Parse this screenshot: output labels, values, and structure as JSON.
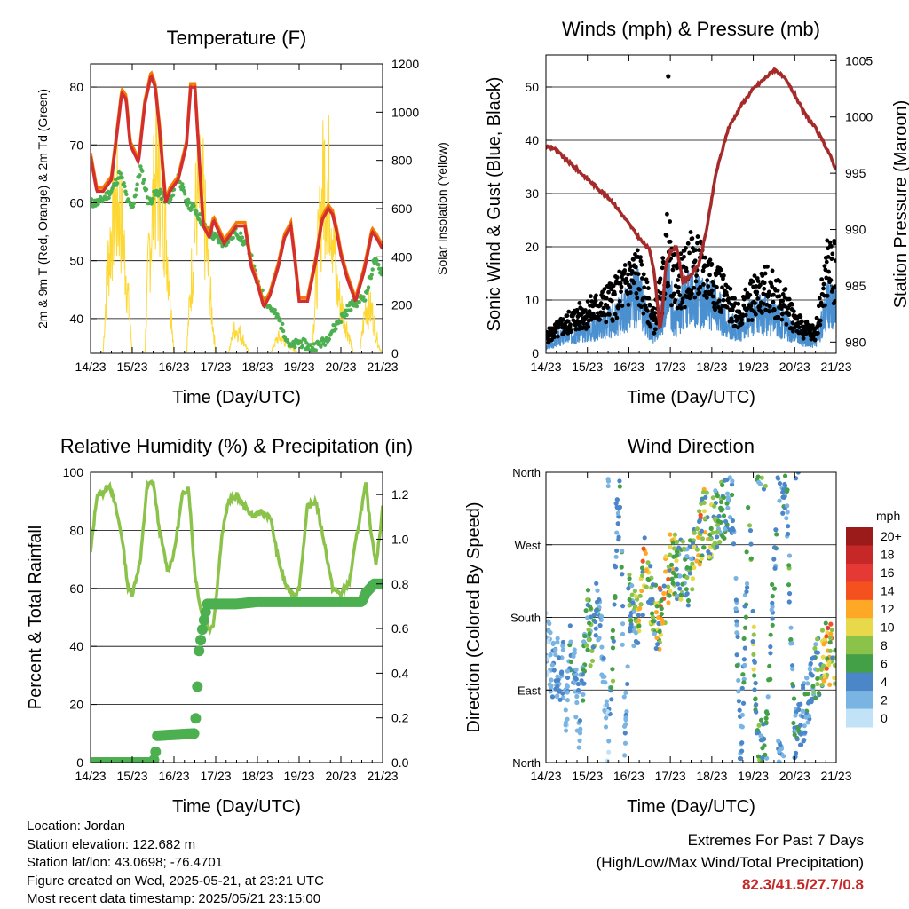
{
  "panels": {
    "temperature": {
      "title": "Temperature (F)",
      "ylabel_left": "2m & 9m T (Red, Orange) & 2m Td (Green)",
      "ylabel_right": "Solar Insolation (Yellow)",
      "xlabel": "Time (Day/UTC)"
    },
    "winds": {
      "title": "Winds (mph) & Pressure (mb)",
      "ylabel_left": "Sonic Wind & Gust (Blue, Black)",
      "ylabel_right": "Station Pressure (Maroon)",
      "xlabel": "Time (Day/UTC)"
    },
    "humidity": {
      "title": "Relative Humidity (%) & Precipitation (in)",
      "ylabel_left": "Percent & Total Rainfall",
      "xlabel": "Time (Day/UTC)"
    },
    "direction": {
      "title": "Wind Direction",
      "ylabel_left": "Direction (Colored By Speed)",
      "xlabel": "Time (Day/UTC)",
      "colorbar_title": "mph"
    }
  },
  "info": {
    "location": "Location: Jordan",
    "elevation": "Station elevation: 122.682 m",
    "latlon": "Station lat/lon: 43.0698; -76.4701",
    "created": "Figure created on Wed, 2025-05-21, at 23:21 UTC",
    "recent": "Most recent data timestamp: 2025/05/21 23:15:00"
  },
  "extremes": {
    "title": "Extremes For Past 7 Days",
    "subtitle": "(High/Low/Max Wind/Total Precipitation)",
    "values": "82.3/41.5/27.7/0.8"
  },
  "colors": {
    "temp_2m": "#d32f2f",
    "temp_9m": "#f57c00",
    "dewpoint": "#4caf50",
    "solar": "#fdd835",
    "wind": "#4a90d0",
    "gust": "#000000",
    "pressure": "#a52a2a",
    "rh": "#8bc34a",
    "precip": "#4caf50"
  },
  "chart_data": [
    {
      "type": "line",
      "title": "Temperature (F)",
      "xlabel": "Time (Day/UTC)",
      "ylabel": "2m & 9m T (Red, Orange) & 2m Td (Green)",
      "ylabel_right": "Solar Insolation (Yellow)",
      "x_ticks": [
        "14/23",
        "15/23",
        "16/23",
        "17/23",
        "18/23",
        "19/23",
        "20/23",
        "21/23"
      ],
      "ylim": [
        34,
        84
      ],
      "y_ticks": [
        40,
        50,
        60,
        70,
        80
      ],
      "ylim_right": [
        0,
        1200
      ],
      "y_ticks_right": [
        0,
        200,
        400,
        600,
        800,
        1000,
        1200
      ],
      "grid": "horizontal",
      "series": [
        {
          "name": "2m T",
          "color": "#d32f2f",
          "x": [
            0,
            0.15,
            0.3,
            0.5,
            0.6,
            0.75,
            0.85,
            0.95,
            1.15,
            1.3,
            1.45,
            1.55,
            1.65,
            1.8,
            1.9,
            2.1,
            2.3,
            2.4,
            2.5,
            2.7,
            2.85,
            2.95,
            3.2,
            3.5,
            3.7,
            3.85,
            4.0,
            4.15,
            4.3,
            4.5,
            4.65,
            4.8,
            4.9,
            5.0,
            5.2,
            5.4,
            5.55,
            5.7,
            5.8,
            5.9,
            6.0,
            6.15,
            6.35,
            6.55,
            6.75,
            6.85,
            7.0
          ],
          "y": [
            68,
            62,
            62,
            64,
            70,
            79,
            78,
            70,
            67,
            77,
            82,
            80,
            73,
            60,
            62,
            64,
            70,
            80,
            80,
            56,
            54,
            57,
            53,
            56,
            56,
            49,
            46,
            42,
            44,
            49,
            54,
            56,
            50,
            43,
            43,
            50,
            57,
            59,
            58,
            55,
            51,
            47,
            43,
            48,
            55,
            54,
            52
          ]
        },
        {
          "name": "2m Td",
          "color": "#4caf50",
          "x": [
            0,
            0.2,
            0.5,
            0.7,
            0.8,
            0.9,
            1.0,
            1.2,
            1.4,
            1.6,
            1.9,
            2.1,
            2.3,
            2.5,
            2.8,
            3.0,
            3.2,
            3.5,
            3.8,
            4.0,
            4.2,
            4.5,
            4.8,
            5.0,
            5.3,
            5.6,
            5.9,
            6.0,
            6.2,
            6.4,
            6.6,
            6.8,
            7.0
          ],
          "y": [
            60,
            60,
            62,
            65,
            63,
            60,
            59,
            66,
            60,
            62,
            60,
            65,
            60,
            59,
            55,
            54,
            53,
            55,
            52,
            46,
            43,
            40,
            35,
            36,
            35,
            36,
            39,
            40,
            42,
            43,
            44,
            50,
            48
          ]
        },
        {
          "name": "Solar Insolation",
          "color": "#fdd835",
          "axis": "right",
          "x": [
            0,
            0.3,
            0.4,
            0.55,
            0.7,
            0.85,
            1.0,
            1.3,
            1.4,
            1.55,
            1.7,
            1.85,
            2.0,
            2.3,
            2.4,
            2.55,
            2.7,
            2.85,
            3.0,
            3.3,
            3.45,
            3.6,
            3.8,
            4.3,
            4.5,
            4.7,
            5.0,
            5.3,
            5.45,
            5.6,
            5.75,
            5.9,
            6.3,
            6.45,
            6.6,
            6.75,
            6.9,
            7.0
          ],
          "y": [
            0,
            0,
            500,
            850,
            900,
            500,
            0,
            0,
            600,
            1050,
            1100,
            600,
            0,
            0,
            400,
            950,
            900,
            400,
            0,
            0,
            150,
            120,
            0,
            0,
            100,
            60,
            0,
            0,
            600,
            1100,
            1000,
            400,
            0,
            0,
            300,
            250,
            50,
            0
          ]
        }
      ]
    },
    {
      "type": "line",
      "title": "Winds (mph) & Pressure (mb)",
      "xlabel": "Time (Day/UTC)",
      "ylabel": "Sonic Wind & Gust (Blue, Black)",
      "ylabel_right": "Station Pressure (Maroon)",
      "x_ticks": [
        "14/23",
        "15/23",
        "16/23",
        "17/23",
        "18/23",
        "19/23",
        "20/23",
        "21/23"
      ],
      "ylim": [
        0,
        56
      ],
      "y_ticks": [
        0,
        10,
        20,
        30,
        40,
        50
      ],
      "ylim_right": [
        979,
        1005.5
      ],
      "y_ticks_right": [
        980,
        985,
        990,
        995,
        1000,
        1005
      ],
      "grid": "horizontal",
      "series": [
        {
          "name": "Sonic Wind",
          "color": "#4a90d0",
          "x": [
            0,
            0.3,
            0.6,
            1.0,
            1.4,
            1.7,
            2.0,
            2.2,
            2.4,
            2.6,
            2.8,
            2.95,
            3.1,
            3.3,
            3.5,
            3.8,
            4.1,
            4.4,
            4.7,
            5.0,
            5.3,
            5.6,
            5.9,
            6.2,
            6.5,
            6.8,
            7.0
          ],
          "y": [
            1,
            3,
            4,
            5,
            6,
            7,
            10,
            12,
            8,
            4,
            8,
            15,
            6,
            10,
            12,
            10,
            10,
            6,
            5,
            8,
            8,
            7,
            5,
            3,
            2,
            10,
            9
          ]
        },
        {
          "name": "Gust",
          "color": "#000000",
          "x": [
            0,
            0.3,
            0.6,
            1.0,
            1.4,
            1.7,
            2.0,
            2.2,
            2.4,
            2.6,
            2.8,
            2.95,
            3.05,
            3.3,
            3.5,
            3.8,
            4.1,
            4.4,
            4.7,
            5.0,
            5.3,
            5.6,
            5.9,
            6.2,
            6.5,
            6.8,
            7.0
          ],
          "y": [
            4,
            6,
            8,
            10,
            12,
            14,
            18,
            20,
            14,
            8,
            16,
            27.7,
            18,
            18,
            22,
            20,
            18,
            12,
            10,
            14,
            16,
            14,
            10,
            6,
            5,
            22,
            20
          ]
        },
        {
          "name": "Station Pressure",
          "color": "#a52a2a",
          "axis": "right",
          "x": [
            0,
            0.2,
            0.4,
            0.7,
            1.0,
            1.3,
            1.6,
            1.9,
            2.1,
            2.3,
            2.5,
            2.6,
            2.7,
            2.75,
            2.8,
            2.9,
            3.0,
            3.15,
            3.3,
            3.5,
            3.7,
            3.9,
            4.1,
            4.4,
            4.7,
            5.0,
            5.3,
            5.5,
            5.6,
            5.8,
            6.0,
            6.2,
            6.5,
            6.8,
            7.0
          ],
          "y": [
            997.4,
            997.2,
            996.5,
            995.5,
            994.5,
            993.5,
            992.5,
            991,
            990,
            989,
            988.2,
            986.5,
            983,
            981,
            982.5,
            987,
            988,
            988.5,
            985.3,
            986,
            987,
            990.5,
            995,
            999,
            1001,
            1002.5,
            1003.5,
            1004.2,
            1004.0,
            1003.2,
            1002,
            1000.5,
            999,
            997,
            995.3
          ]
        }
      ]
    },
    {
      "type": "line",
      "title": "Relative Humidity (%) & Precipitation (in)",
      "xlabel": "Time (Day/UTC)",
      "ylabel": "Percent & Total Rainfall",
      "x_ticks": [
        "14/23",
        "15/23",
        "16/23",
        "17/23",
        "18/23",
        "19/23",
        "20/23",
        "21/23"
      ],
      "ylim": [
        0,
        100
      ],
      "y_ticks": [
        0,
        20,
        40,
        60,
        80,
        100
      ],
      "ylim_right": [
        0,
        1.3
      ],
      "y_ticks_right": [
        0.0,
        0.2,
        0.4,
        0.6,
        0.8,
        1.0,
        1.2
      ],
      "grid": "horizontal",
      "series": [
        {
          "name": "Relative Humidity",
          "color": "#8bc34a",
          "x": [
            0,
            0.15,
            0.3,
            0.45,
            0.6,
            0.75,
            0.9,
            1.0,
            1.2,
            1.35,
            1.5,
            1.65,
            1.85,
            2.0,
            2.2,
            2.35,
            2.5,
            2.65,
            2.85,
            2.95,
            3.15,
            3.3,
            3.5,
            3.7,
            3.9,
            4.1,
            4.3,
            4.5,
            4.7,
            4.9,
            5.0,
            5.2,
            5.4,
            5.6,
            5.8,
            6.0,
            6.2,
            6.4,
            6.6,
            6.7,
            6.85,
            7.0
          ],
          "y": [
            72,
            92,
            93,
            96,
            88,
            78,
            60,
            58,
            70,
            95,
            97,
            80,
            66,
            72,
            92,
            95,
            65,
            52,
            46,
            48,
            78,
            90,
            92,
            88,
            85,
            86,
            85,
            70,
            60,
            58,
            60,
            88,
            90,
            76,
            60,
            58,
            62,
            80,
            96,
            82,
            68,
            88
          ]
        },
        {
          "name": "Total Precipitation",
          "color": "#4caf50",
          "axis": "right",
          "x": [
            0,
            1.5,
            1.55,
            1.6,
            2.5,
            2.55,
            2.6,
            2.7,
            2.8,
            3.0,
            3.5,
            4.0,
            6.5,
            6.6,
            6.8,
            7.0
          ],
          "y": [
            0,
            0,
            0.03,
            0.12,
            0.13,
            0.3,
            0.5,
            0.62,
            0.71,
            0.71,
            0.71,
            0.72,
            0.72,
            0.76,
            0.8,
            0.8
          ]
        }
      ]
    },
    {
      "type": "scatter",
      "title": "Wind Direction",
      "xlabel": "Time (Day/UTC)",
      "ylabel": "Direction (Colored By Speed)",
      "x_ticks": [
        "14/23",
        "15/23",
        "16/23",
        "17/23",
        "18/23",
        "19/23",
        "20/23",
        "21/23"
      ],
      "y_ticks": [
        "North",
        "East",
        "South",
        "West",
        "North"
      ],
      "ylim": [
        0,
        360
      ],
      "grid": "horizontal",
      "colorbar": {
        "title": "mph",
        "labels": [
          "20+",
          "18",
          "16",
          "14",
          "12",
          "10",
          "8",
          "6",
          "4",
          "2",
          "0"
        ],
        "colors": [
          "#9b1b1b",
          "#c62828",
          "#e53935",
          "#f4511e",
          "#ffa726",
          "#e8d94a",
          "#8bc34a",
          "#43a047",
          "#4a86c8",
          "#7ab4e3",
          "#c1e2f7"
        ]
      },
      "series": [
        {
          "name": "Direction",
          "x": [
            0,
            0.2,
            0.4,
            0.5,
            0.6,
            0.8,
            1.0,
            1.1,
            1.2,
            1.3,
            1.5,
            1.6,
            1.7,
            1.8,
            1.9,
            2.0,
            2.2,
            2.3,
            2.4,
            2.5,
            2.7,
            2.8,
            3.0,
            3.2,
            3.4,
            3.6,
            3.8,
            4.0,
            4.2,
            4.5,
            4.7,
            4.9,
            5.1,
            5.3,
            5.6,
            5.8,
            6.0,
            6.2,
            6.4,
            6.6,
            6.8,
            7.0
          ],
          "y": [
            150,
            110,
            120,
            60,
            160,
            50,
            180,
            150,
            190,
            170,
            20,
            100,
            300,
            330,
            10,
            200,
            170,
            200,
            250,
            220,
            170,
            190,
            250,
            240,
            230,
            260,
            300,
            290,
            310,
            320,
            5,
            330,
            10,
            20,
            350,
            340,
            20,
            60,
            100,
            120,
            140,
            120
          ],
          "speed": [
            2,
            3,
            4,
            2,
            6,
            3,
            6,
            8,
            5,
            4,
            2,
            6,
            4,
            5,
            3,
            6,
            8,
            10,
            12,
            8,
            10,
            12,
            10,
            8,
            6,
            10,
            12,
            8,
            6,
            5,
            3,
            7,
            8,
            6,
            4,
            6,
            5,
            4,
            5,
            7,
            12,
            10
          ]
        }
      ]
    }
  ]
}
